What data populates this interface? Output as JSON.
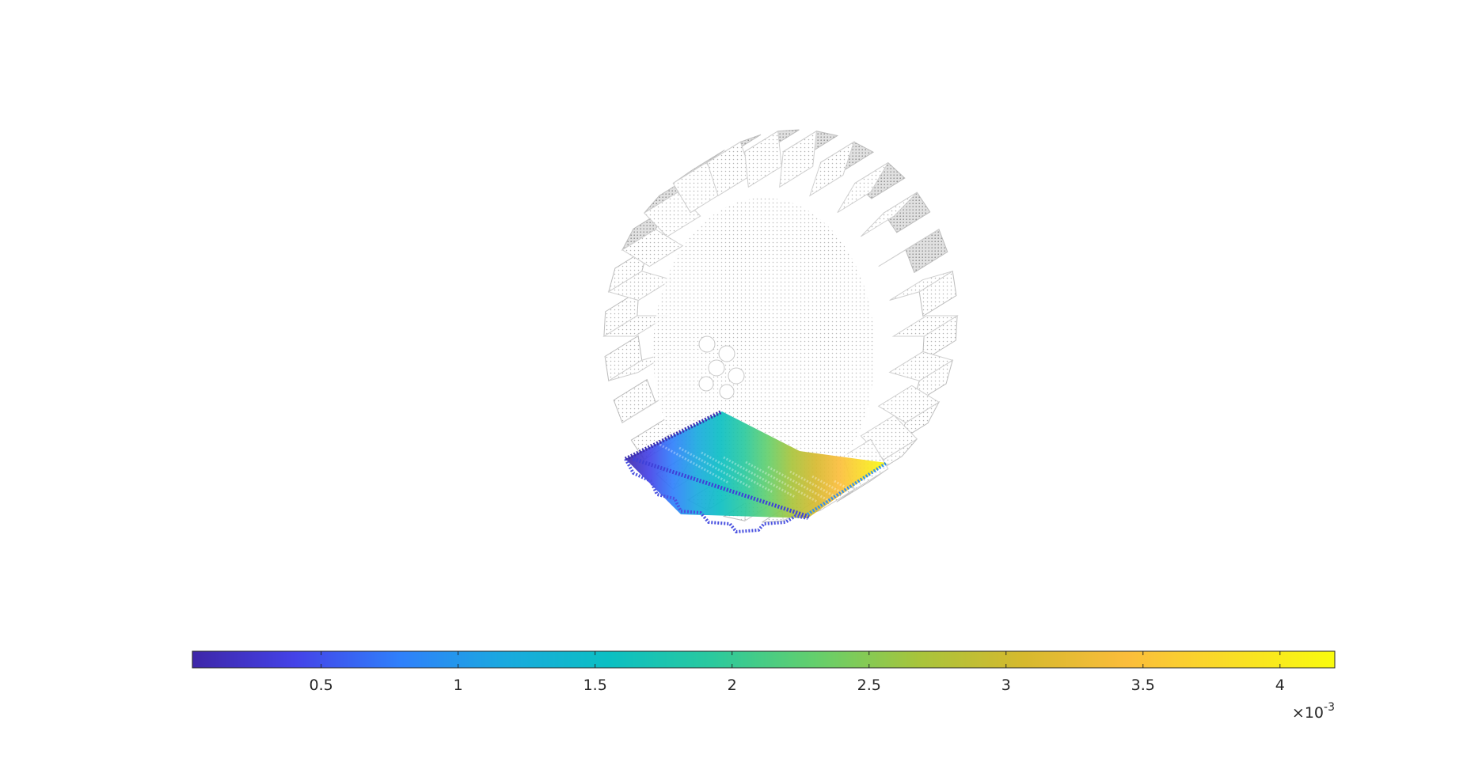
{
  "chart_data": {
    "type": "other",
    "view": "3d-point-cloud",
    "base_mesh_color": "#a0a0a0",
    "colormap": "parula",
    "colormap_stops": [
      "#3e26a8",
      "#4443e8",
      "#2f80fb",
      "#1aa9df",
      "#0bbfc3",
      "#2ac99e",
      "#64cf6c",
      "#a8c43b",
      "#d6b92e",
      "#fbbd3b",
      "#f9dd26",
      "#f9fb0e"
    ],
    "colorbar": {
      "orientation": "horizontal",
      "location": "south",
      "range": [
        3e-05,
        0.0042
      ],
      "ticks": [
        0.0005,
        0.001,
        0.0015,
        0.002,
        0.0025,
        0.003,
        0.0035,
        0.004
      ],
      "tick_labels": [
        "0.5",
        "1",
        "1.5",
        "2",
        "2.5",
        "3",
        "3.5",
        "4"
      ],
      "exponent_base": "×10",
      "exponent_power": "-3"
    }
  }
}
